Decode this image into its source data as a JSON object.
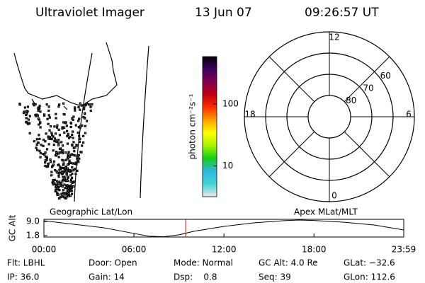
{
  "header": {
    "title": "Ultraviolet Imager",
    "date": "13 Jun 07",
    "time": "09:26:57 UT"
  },
  "chart_data": [
    {
      "type": "colorbar",
      "label": "photon cm⁻²s⁻¹",
      "log_scale": true,
      "ylim": [
        3.2,
        577
      ],
      "yticks": [
        10,
        100
      ],
      "colors": [
        "#e8e8e8",
        "#3fd6d6",
        "#30b8e0",
        "#10d010",
        "#a8f000",
        "#ffff00",
        "#ffa000",
        "#ff3000",
        "#c00010",
        "#800050",
        "#400060",
        "#000000"
      ]
    },
    {
      "type": "polar",
      "rlim": [
        90,
        50
      ],
      "rticks": [
        80,
        70,
        60
      ],
      "angle_ticks": [
        12,
        18,
        6,
        0
      ],
      "angle_period": 24
    },
    {
      "type": "line",
      "ylabel": "GC Alt",
      "left_label": "Geographic Lat/Lon",
      "right_label": "Apex MLat/MLT",
      "xlim": [
        0,
        23.983
      ],
      "ylim": [
        1.08,
        10.08
      ],
      "xticks": [
        {
          "value": 0,
          "label": "00:00"
        },
        {
          "value": 6,
          "label": "06:00"
        },
        {
          "value": 12,
          "label": "12:00"
        },
        {
          "value": 18,
          "label": "18:00"
        },
        {
          "value": 23.983,
          "label": "23:59"
        }
      ],
      "yticks": [
        1.8,
        {
          "value": 9,
          "label": "9.0"
        }
      ],
      "current_x": 9.449,
      "x": [
        0,
        2,
        4,
        6,
        7,
        8,
        9,
        10,
        12,
        14,
        16,
        17,
        18,
        20,
        22,
        23.983
      ],
      "series": [
        {
          "color": "#000000",
          "values": [
            9.36,
            7.56,
            5.76,
            2.9,
            1.5,
            1.2,
            2.2,
            4.0,
            6.5,
            8.3,
            9.4,
            9.7,
            9.5,
            8.6,
            7.2,
            4.7
          ]
        }
      ]
    }
  ],
  "footer": {
    "rows": [
      [
        "Flt: LBHL",
        "Door: Open",
        "Mode: Normal",
        "GC Alt: 4.0 Re",
        "GLat: −32.6"
      ],
      [
        "IP: 36.0",
        "Gain: 14",
        "Dsp:    0.8",
        "Seq: 39",
        "GLon: 112.6"
      ]
    ]
  }
}
